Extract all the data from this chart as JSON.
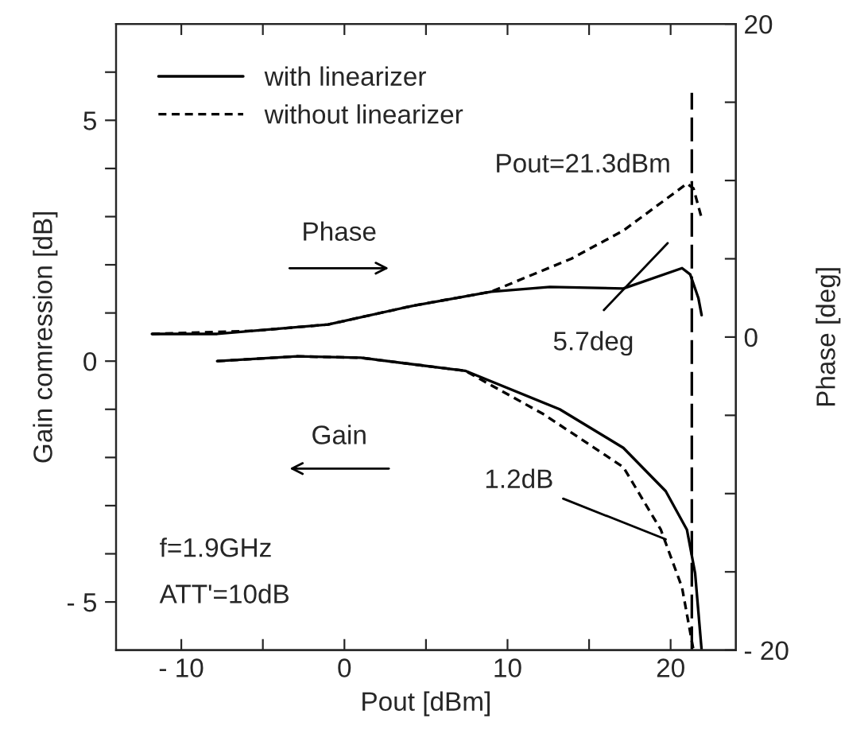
{
  "chart_data": {
    "type": "line",
    "xlabel": "Pout [dBm]",
    "ylabel": "Gain comression [dB]",
    "y2label": "Phase [deg]",
    "xlim": [
      -14,
      24
    ],
    "ylim": [
      -6,
      7
    ],
    "y2lim": [
      -20,
      20
    ],
    "xticks": [
      {
        "value": -10,
        "label": "- 10"
      },
      {
        "value": -5,
        "label": null
      },
      0,
      {
        "value": 5,
        "label": null
      },
      10,
      {
        "value": 15,
        "label": null
      },
      20
    ],
    "yticks": [
      {
        "value": -5,
        "label": "- 5"
      },
      {
        "value": -4,
        "label": null
      },
      {
        "value": -3,
        "label": null
      },
      {
        "value": -2,
        "label": null
      },
      {
        "value": -1,
        "label": null
      },
      0,
      {
        "value": 1,
        "label": null
      },
      {
        "value": 2,
        "label": null
      },
      {
        "value": 3,
        "label": null
      },
      {
        "value": 4,
        "label": null
      },
      5,
      {
        "value": 6,
        "label": null
      }
    ],
    "y2ticks": [
      {
        "value": -20,
        "label": "- 20"
      },
      {
        "value": -15,
        "label": null
      },
      {
        "value": -10,
        "label": null
      },
      {
        "value": -5,
        "label": null
      },
      0,
      {
        "value": 5,
        "label": null
      },
      {
        "value": 10,
        "label": null
      },
      {
        "value": 15,
        "label": null
      },
      20
    ],
    "grid": false,
    "legend": "top left",
    "series": [
      {
        "name": "with linearizer",
        "color": "#000000",
        "line_style": "solid",
        "x": [
          -7.8,
          -2.9,
          1.0,
          7.4,
          13.2,
          17.1,
          19.7,
          21.0,
          21.5,
          21.9
        ],
        "values": [
          0,
          0.1,
          0.07,
          -0.2,
          -1.0,
          -1.8,
          -2.7,
          -3.5,
          -4.4,
          -6.0
        ]
      },
      {
        "name": "without linearizer",
        "color": "#000000",
        "line_style": "dashed",
        "x": [
          -7.8,
          -2.9,
          1.0,
          7.4,
          12.2,
          17.1,
          19.4,
          20.7,
          21.4
        ],
        "values": [
          0,
          0.1,
          0.07,
          -0.2,
          -1.1,
          -2.2,
          -3.5,
          -4.7,
          -6.0
        ]
      },
      {
        "color": "#000000",
        "line_style": "solid",
        "axis": "y2",
        "x": [
          -11.8,
          -7.8,
          -1.0,
          4.2,
          9.0,
          12.6,
          17.1,
          20.7,
          21.2,
          21.7,
          21.9
        ],
        "values": [
          0.2,
          0.2,
          0.8,
          2.0,
          2.9,
          3.2,
          3.1,
          4.4,
          4.0,
          2.5,
          1.4
        ]
      },
      {
        "color": "#000000",
        "line_style": "dashed",
        "axis": "y2",
        "x": [
          -11.8,
          -5.5,
          -1.0,
          4.2,
          9.0,
          13.9,
          17.1,
          19.7,
          21.0,
          21.4,
          21.9
        ],
        "values": [
          0.2,
          0.4,
          0.8,
          2.0,
          2.9,
          5.0,
          6.8,
          8.8,
          9.8,
          9.5,
          7.6
        ]
      }
    ],
    "ref_lines": [
      {
        "axis": "x",
        "value": 21.3,
        "label": "Pout=21.3dBm",
        "line_style": "dashed",
        "color": "#000000"
      }
    ],
    "annotations": [
      "Phase",
      "Gain",
      "5.7deg",
      {
        "text": "1.2dB",
        "x": 19.7,
        "y": -3.7
      },
      "f=1.9GHz",
      "ATT'=10dB"
    ]
  }
}
